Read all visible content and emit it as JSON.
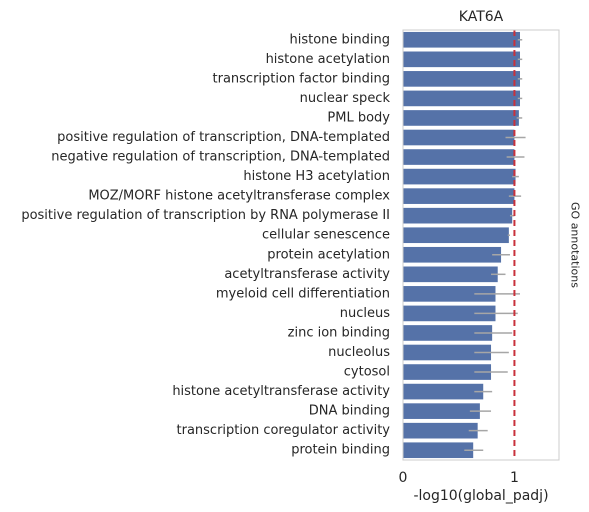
{
  "chart_data": {
    "type": "bar",
    "orientation": "horizontal",
    "title": "KAT6A",
    "xlabel": "-log10(global_padj)",
    "side_label": "GO annotations",
    "xlim": [
      0,
      1.4
    ],
    "xticks": [
      0,
      1
    ],
    "threshold": 1.0,
    "colors": {
      "bar": "#5572a8",
      "error": "#a6a6a6",
      "threshold": "#c8323c",
      "frame": "#cccccc"
    },
    "categories": [
      "histone binding",
      "histone acetylation",
      "transcription factor binding",
      "nuclear speck",
      "PML body",
      "positive regulation of transcription, DNA-templated",
      "negative regulation of transcription, DNA-templated",
      "histone H3 acetylation",
      "MOZ/MORF histone acetyltransferase complex",
      "positive regulation of transcription by RNA polymerase II",
      "cellular senescence",
      "protein acetylation",
      "acetyltransferase activity",
      "myeloid cell differentiation",
      "nucleus",
      "zinc ion binding",
      "nucleolus",
      "cytosol",
      "histone acetyltransferase activity",
      "DNA binding",
      "transcription coregulator activity",
      "protein binding"
    ],
    "values": [
      1.05,
      1.05,
      1.05,
      1.05,
      1.04,
      1.0,
      1.0,
      1.01,
      1.0,
      0.98,
      0.95,
      0.88,
      0.85,
      0.83,
      0.83,
      0.8,
      0.79,
      0.79,
      0.72,
      0.69,
      0.67,
      0.63
    ],
    "errors": [
      [
        1.03,
        1.07
      ],
      [
        1.03,
        1.07
      ],
      [
        1.03,
        1.07
      ],
      [
        1.03,
        1.07
      ],
      [
        1.02,
        1.07
      ],
      [
        0.92,
        1.1
      ],
      [
        0.93,
        1.09
      ],
      [
        0.98,
        1.04
      ],
      [
        0.95,
        1.06
      ],
      [
        0.96,
        1.0
      ],
      [
        0.94,
        0.96
      ],
      [
        0.8,
        0.96
      ],
      [
        0.79,
        0.92
      ],
      [
        0.64,
        1.05
      ],
      [
        0.64,
        1.03
      ],
      [
        0.64,
        0.98
      ],
      [
        0.64,
        0.95
      ],
      [
        0.64,
        0.94
      ],
      [
        0.64,
        0.8
      ],
      [
        0.6,
        0.79
      ],
      [
        0.59,
        0.76
      ],
      [
        0.55,
        0.72
      ]
    ]
  }
}
